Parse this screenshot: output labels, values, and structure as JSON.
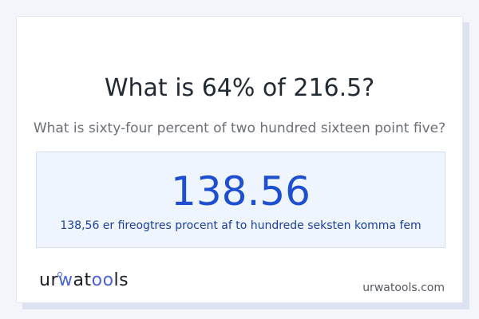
{
  "question": "What is 64% of 216.5?",
  "question_words": "What is sixty-four percent of two hundred sixteen point five?",
  "result": {
    "value": "138.56",
    "words": "138,56 er fireogtres procent af to hundrede seksten komma fem"
  },
  "footer": {
    "logo_text": "urwatools",
    "site": "urwatools.com"
  },
  "colors": {
    "accent": "#1f4fd1",
    "result_bg": "#eef5ff",
    "logo_accent": "#4a63d8"
  }
}
